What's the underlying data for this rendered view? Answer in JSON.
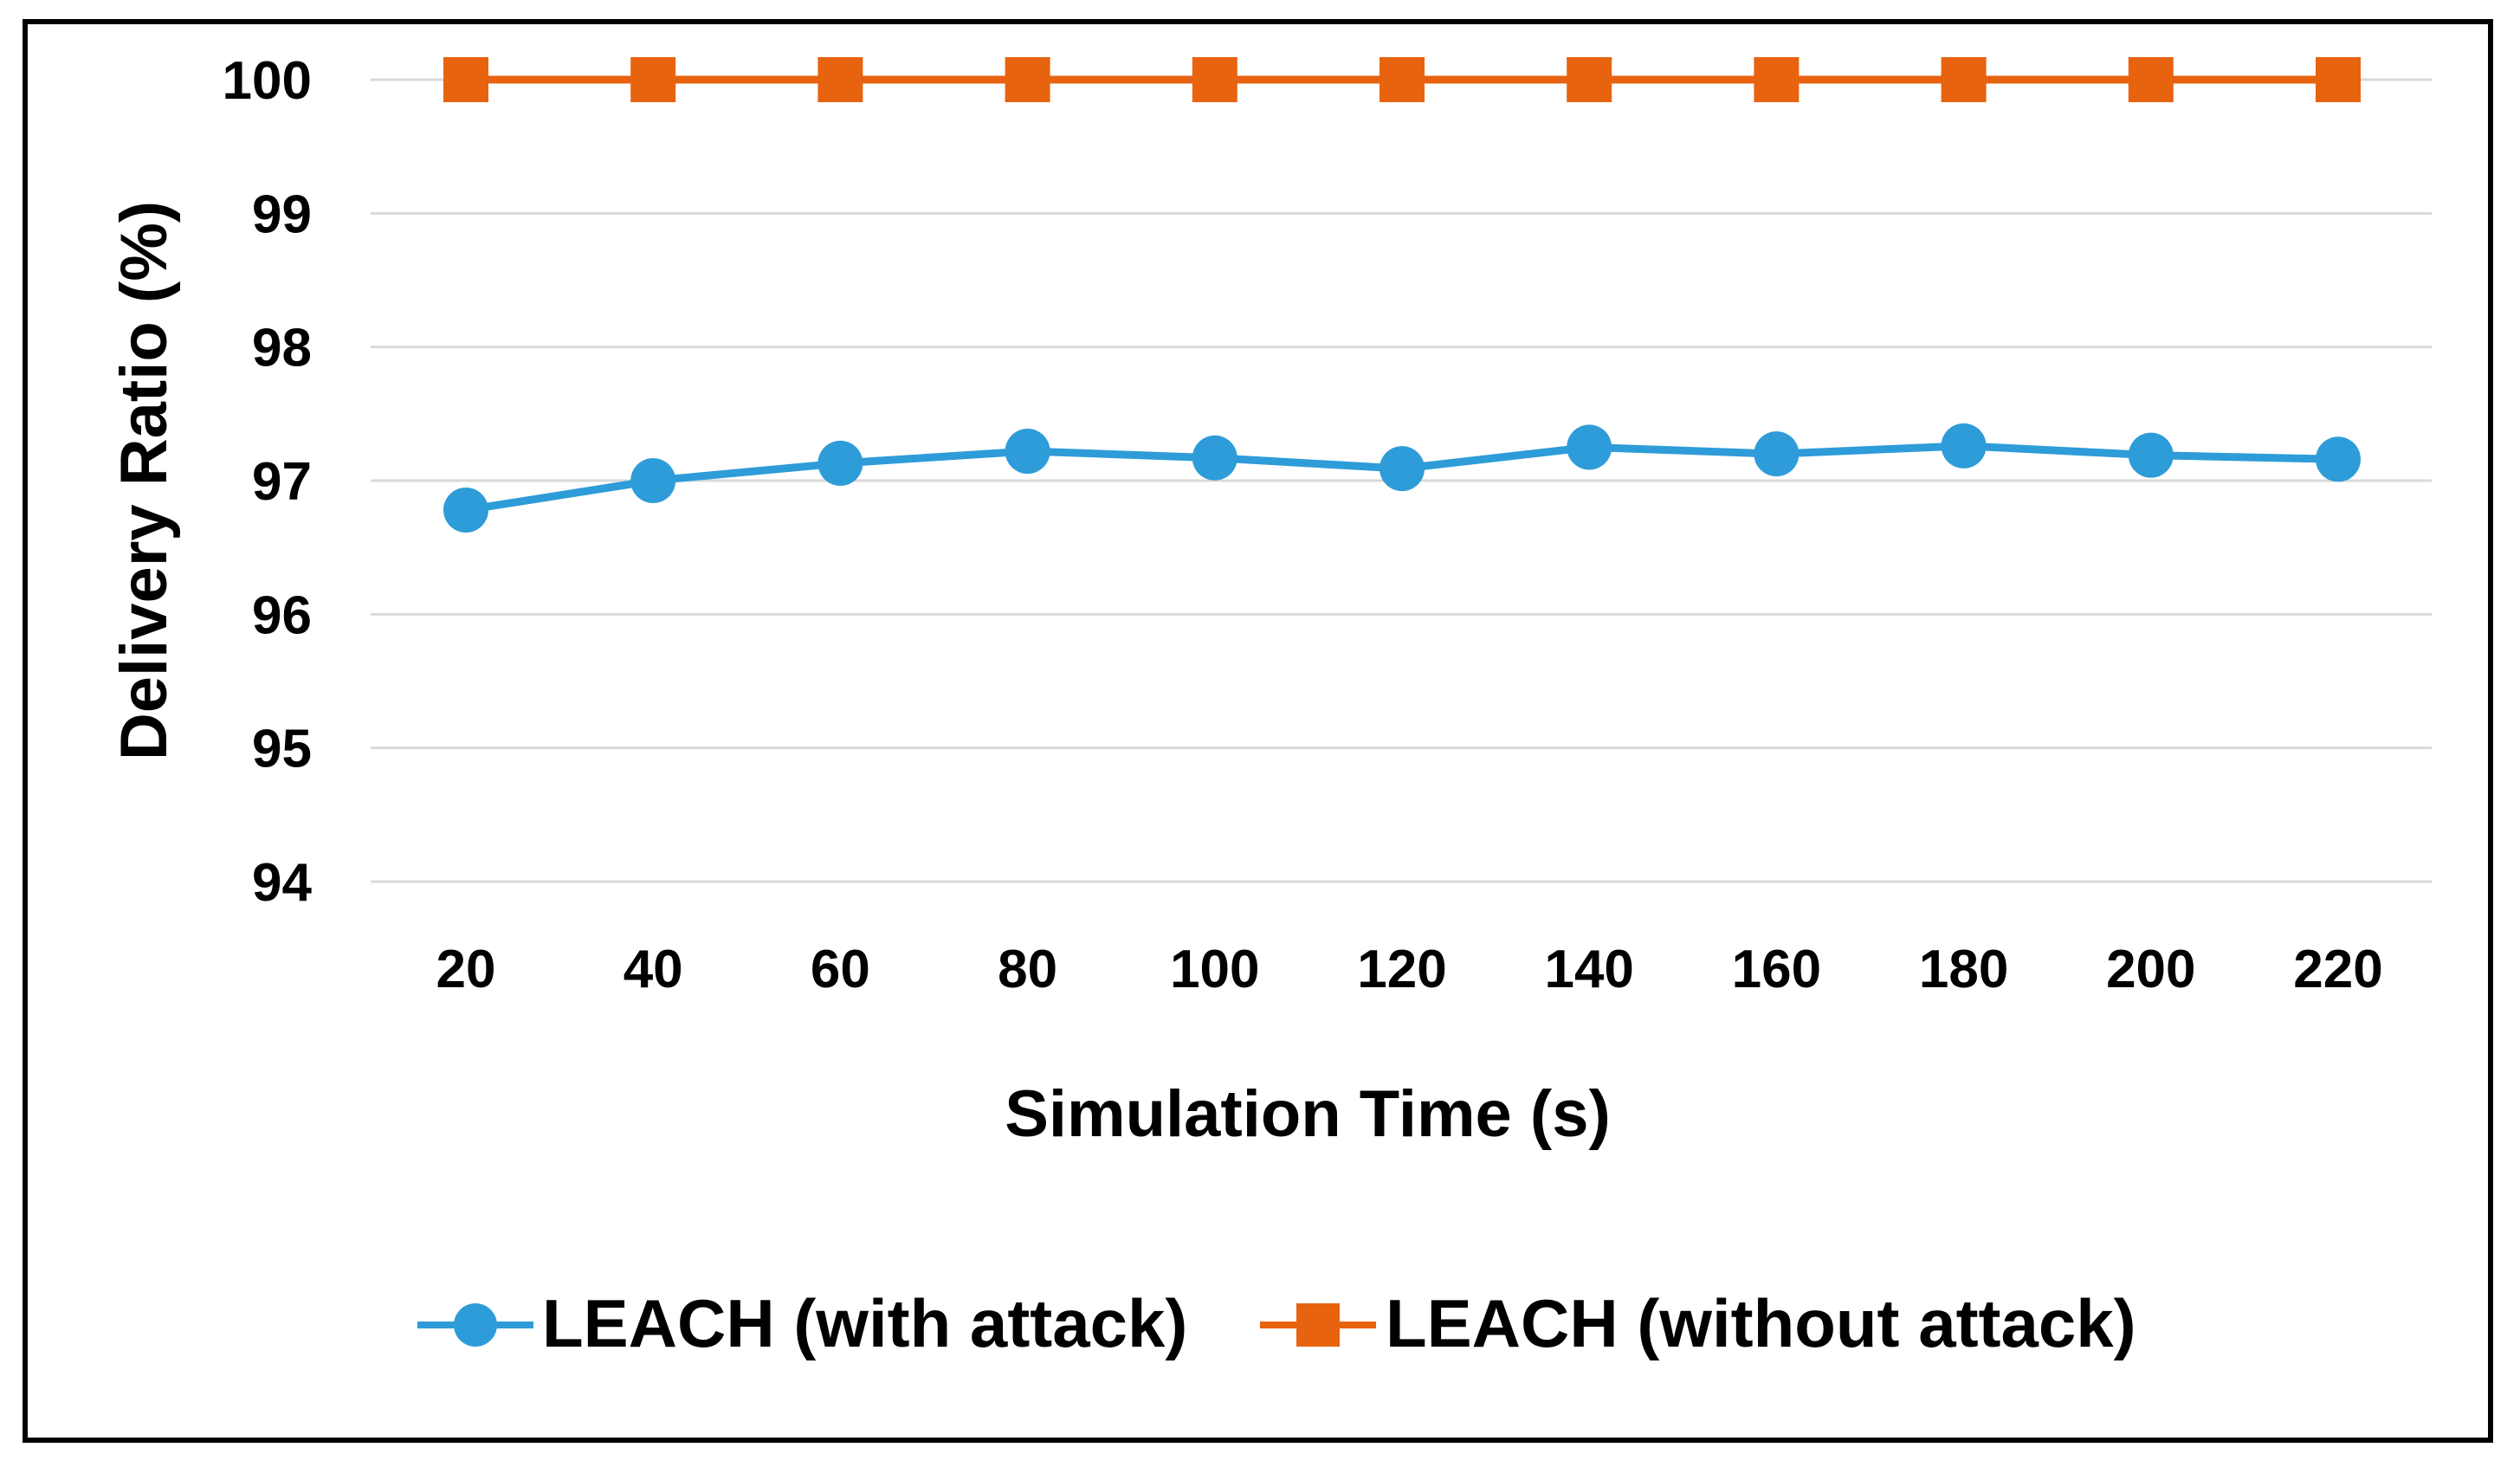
{
  "chart_data": {
    "type": "line",
    "title": "",
    "xlabel": "Simulation Time (s)",
    "ylabel": "Delivery Ratio (%)",
    "categories": [
      "20",
      "40",
      "60",
      "80",
      "100",
      "120",
      "140",
      "160",
      "180",
      "200",
      "220"
    ],
    "ylim": [
      94,
      100
    ],
    "yticks": [
      "94",
      "95",
      "96",
      "97",
      "98",
      "99",
      "100"
    ],
    "grid": true,
    "legend_position": "bottom",
    "series": [
      {
        "name": "LEACH (with attack)",
        "marker": "circle",
        "color": "#2e9cd8",
        "values": [
          96.78,
          97.0,
          97.13,
          97.22,
          97.17,
          97.09,
          97.25,
          97.2,
          97.26,
          97.19,
          97.16
        ]
      },
      {
        "name": "LEACH (without attack)",
        "marker": "square",
        "color": "#e8630f",
        "values": [
          100,
          100,
          100,
          100,
          100,
          100,
          100,
          100,
          100,
          100,
          100
        ]
      }
    ]
  }
}
